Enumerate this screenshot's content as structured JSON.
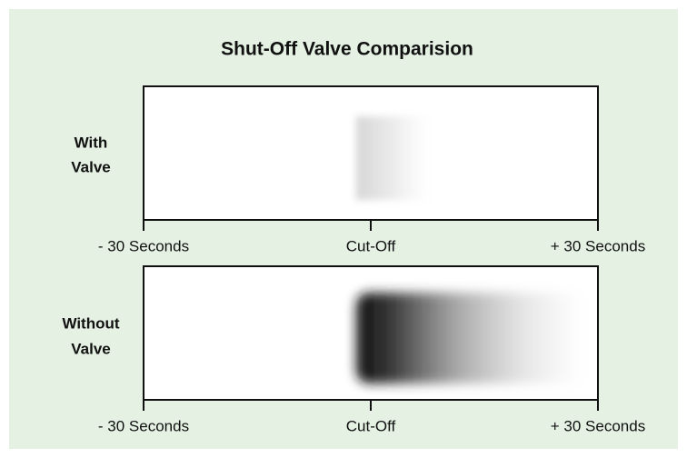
{
  "title": "Shut-Off Valve Comparision",
  "panels": [
    {
      "label": [
        "With",
        "Valve"
      ],
      "axis_labels": [
        "- 30 Seconds",
        "Cut-Off",
        "+ 30 Seconds"
      ]
    },
    {
      "label": [
        "Without",
        "Valve"
      ],
      "axis_labels": [
        "- 30 Seconds",
        "Cut-Off",
        "+ 30 Seconds"
      ]
    }
  ]
}
